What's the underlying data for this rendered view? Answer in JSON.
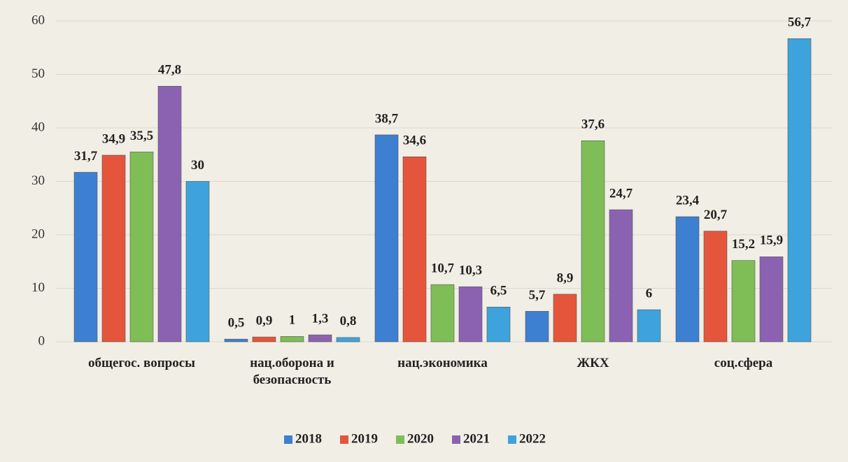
{
  "chart_data": {
    "type": "bar",
    "categories": [
      "общегос. вопросы",
      "нац.оборона и безопасность",
      "нац.экономика",
      "ЖКХ",
      "соц.сфера"
    ],
    "series": [
      {
        "name": "2018",
        "color": "#3d7fd1",
        "values": [
          31.7,
          0.5,
          38.7,
          5.7,
          23.4
        ],
        "value_labels": [
          "31,7",
          "0,5",
          "38,7",
          "5,7",
          "23,4"
        ]
      },
      {
        "name": "2019",
        "color": "#e5553b",
        "values": [
          34.9,
          0.9,
          34.6,
          8.9,
          20.7
        ],
        "value_labels": [
          "34,9",
          "0,9",
          "34,6",
          "8,9",
          "20,7"
        ]
      },
      {
        "name": "2020",
        "color": "#7fbd56",
        "values": [
          35.5,
          1,
          10.7,
          37.6,
          15.2
        ],
        "value_labels": [
          "35,5",
          "1",
          "10,7",
          "37,6",
          "15,2"
        ]
      },
      {
        "name": "2021",
        "color": "#8b62b2",
        "values": [
          47.8,
          1.3,
          10.3,
          24.7,
          15.9
        ],
        "value_labels": [
          "47,8",
          "1,3",
          "10,3",
          "24,7",
          "15,9"
        ]
      },
      {
        "name": "2022",
        "color": "#3ea3dc",
        "values": [
          30,
          0.8,
          6.5,
          6,
          56.7
        ],
        "value_labels": [
          "30",
          "0,8",
          "6,5",
          "6",
          "56,7"
        ]
      }
    ],
    "ylim": [
      0,
      60
    ],
    "yticks": [
      0,
      10,
      20,
      30,
      40,
      50,
      60
    ],
    "grid": true,
    "legend": "bottom"
  }
}
